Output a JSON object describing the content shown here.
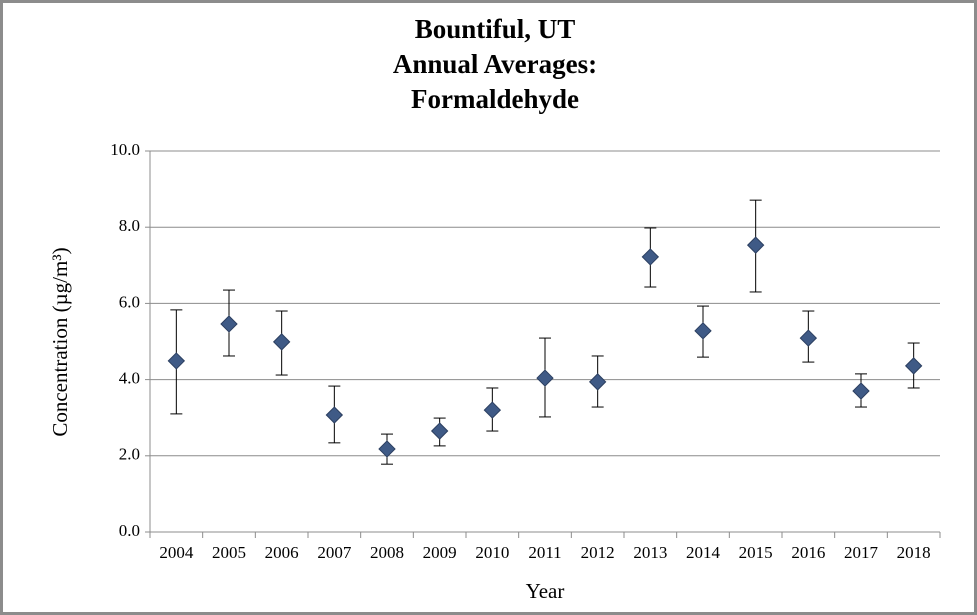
{
  "chart_data": {
    "type": "scatter",
    "title": [
      "Bountiful, UT",
      "Annual Averages:",
      "Formaldehyde"
    ],
    "x_label": "Year",
    "y_label": "Concentration (µg/m³)",
    "categories": [
      "2004",
      "2005",
      "2006",
      "2007",
      "2008",
      "2009",
      "2010",
      "2011",
      "2012",
      "2013",
      "2014",
      "2015",
      "2016",
      "2017",
      "2018"
    ],
    "series": [
      {
        "name": "Formaldehyde",
        "color": "#3f5a86",
        "values": [
          4.49,
          5.46,
          4.99,
          3.07,
          2.18,
          2.65,
          3.2,
          4.04,
          3.94,
          7.22,
          5.28,
          7.53,
          5.09,
          3.7,
          4.36
        ],
        "ci_upper": [
          5.83,
          6.35,
          5.8,
          3.83,
          2.57,
          2.99,
          3.78,
          5.09,
          4.62,
          7.98,
          5.93,
          8.71,
          5.8,
          4.15,
          4.96
        ],
        "ci_lower": [
          3.1,
          4.62,
          4.12,
          2.34,
          1.78,
          2.26,
          2.65,
          3.02,
          3.28,
          6.43,
          4.59,
          6.3,
          4.46,
          3.28,
          3.78
        ]
      }
    ],
    "ylim": [
      0,
      10
    ],
    "yticks": [
      {
        "value": 0,
        "label": "0.0"
      },
      {
        "value": 2,
        "label": "2.0"
      },
      {
        "value": 4,
        "label": "4.0"
      },
      {
        "value": 6,
        "label": "6.0"
      },
      {
        "value": 8,
        "label": "8.0"
      },
      {
        "value": 10,
        "label": "10.0"
      }
    ],
    "grid": true
  }
}
